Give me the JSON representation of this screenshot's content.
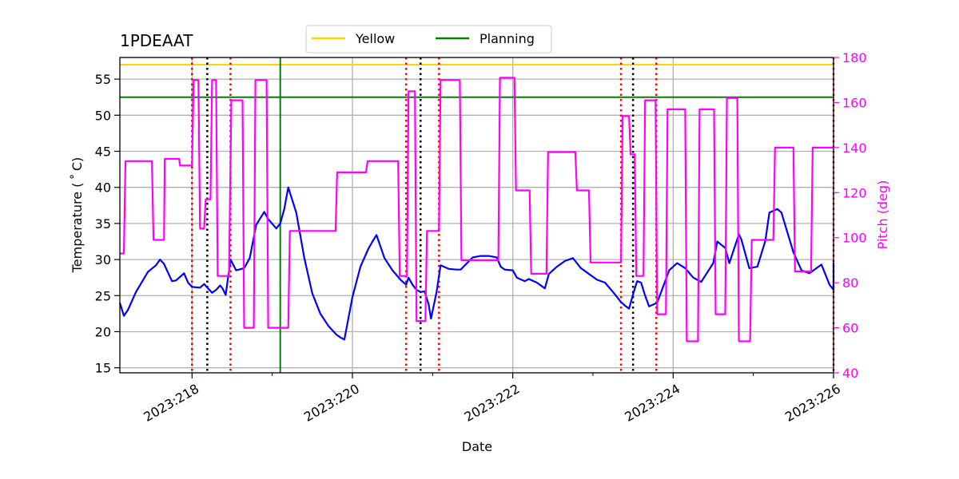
{
  "chart_data": {
    "type": "line",
    "title": "1PDEAAT",
    "xlabel": "Date",
    "ylabel": "Temperature ($^\\circ$C)",
    "ylabel_display": "Temperature ( ˚ C)",
    "y2label": "Pitch (deg)",
    "xlim": [
      217.1,
      226.0
    ],
    "ylim": [
      14.3,
      58.0
    ],
    "y2lim": [
      40,
      180
    ],
    "x_ticks": [
      218,
      220,
      222,
      224,
      226
    ],
    "x_tick_labels": [
      "2023:218",
      "2023:220",
      "2023:222",
      "2023:224",
      "2023:226"
    ],
    "x_minor_ticks": [
      219,
      221,
      223,
      225
    ],
    "y_ticks": [
      15,
      20,
      25,
      30,
      35,
      40,
      45,
      50,
      55
    ],
    "y_tick_labels": [
      "15",
      "20",
      "25",
      "30",
      "35",
      "40",
      "45",
      "50",
      "55"
    ],
    "y2_ticks": [
      40,
      60,
      80,
      100,
      120,
      140,
      160,
      180
    ],
    "y2_tick_labels": [
      "40",
      "60",
      "80",
      "100",
      "120",
      "140",
      "160",
      "180"
    ],
    "grid": true,
    "legend": {
      "placement": "top-center, outside",
      "entries": [
        {
          "label": "Yellow",
          "color": "#ffd700"
        },
        {
          "label": "Planning",
          "color": "#008000"
        }
      ]
    },
    "hlines": [
      {
        "name": "Yellow",
        "y": 57.0,
        "color": "#ffd700"
      },
      {
        "name": "Planning",
        "y": 52.5,
        "color": "#008000"
      }
    ],
    "vlines": {
      "planning": {
        "x": [
          219.1
        ],
        "color": "#008000"
      },
      "red_dotted": {
        "x": [
          218.0,
          218.48,
          220.67,
          221.08,
          223.35,
          223.79,
          226.0
        ],
        "color": "#ff0000"
      },
      "black_dotted": {
        "x": [
          218.19,
          220.85,
          223.5
        ],
        "color": "#000000"
      }
    },
    "series": [
      {
        "axis": "y",
        "color": "#0000ff",
        "x": [
          217.1,
          217.15,
          217.2,
          217.3,
          217.45,
          217.55,
          217.6,
          217.65,
          217.7,
          217.75,
          217.8,
          217.9,
          217.95,
          218.0,
          218.1,
          218.15,
          218.2,
          218.25,
          218.3,
          218.35,
          218.38,
          218.42,
          218.48,
          218.55,
          218.65,
          218.72,
          218.8,
          218.9,
          218.95,
          219.05,
          219.1,
          219.15,
          219.2,
          219.3,
          219.4,
          219.5,
          219.6,
          219.7,
          219.8,
          219.85,
          219.9,
          220.0,
          220.1,
          220.2,
          220.25,
          220.3,
          220.4,
          220.5,
          220.6,
          220.67,
          220.7,
          220.75,
          220.8,
          220.85,
          220.9,
          220.95,
          220.98,
          221.05,
          221.1,
          221.2,
          221.3,
          221.35,
          221.5,
          221.6,
          221.7,
          221.8,
          221.85,
          221.9,
          222.0,
          222.05,
          222.15,
          222.2,
          222.3,
          222.4,
          222.45,
          222.55,
          222.65,
          222.75,
          222.85,
          222.95,
          223.05,
          223.15,
          223.25,
          223.35,
          223.4,
          223.45,
          223.5,
          223.55,
          223.6,
          223.65,
          223.7,
          223.8,
          223.9,
          223.95,
          224.05,
          224.15,
          224.25,
          224.35,
          224.5,
          224.55,
          224.65,
          224.7,
          224.82,
          224.85,
          224.95,
          225.05,
          225.15,
          225.2,
          225.3,
          225.35,
          225.5,
          225.6,
          225.7,
          225.75,
          225.85,
          225.95,
          226.0
        ],
        "values": [
          24.0,
          22.2,
          23.0,
          25.5,
          28.3,
          29.2,
          30.0,
          29.4,
          28.2,
          27.0,
          27.1,
          28.1,
          26.8,
          26.2,
          26.1,
          26.6,
          26.0,
          25.4,
          25.8,
          26.4,
          26.0,
          25.1,
          30.0,
          28.5,
          28.8,
          30.2,
          34.8,
          36.6,
          35.6,
          34.3,
          35.0,
          37.0,
          40.0,
          36.5,
          30.2,
          25.3,
          22.5,
          20.8,
          19.6,
          19.2,
          18.9,
          24.8,
          29.0,
          31.5,
          32.5,
          33.4,
          30.2,
          28.5,
          27.2,
          26.5,
          27.5,
          26.5,
          25.8,
          25.5,
          25.6,
          23.8,
          21.8,
          25.5,
          29.2,
          28.7,
          28.6,
          28.6,
          30.3,
          30.5,
          30.5,
          30.3,
          29.0,
          28.6,
          28.5,
          27.5,
          27.0,
          27.3,
          26.8,
          26.0,
          28.0,
          29.0,
          29.8,
          30.2,
          28.8,
          28.0,
          27.2,
          26.8,
          25.5,
          24.1,
          23.6,
          23.2,
          25.2,
          27.0,
          26.8,
          25.0,
          23.5,
          24.0,
          27.0,
          28.5,
          29.5,
          28.8,
          27.5,
          26.9,
          29.5,
          32.5,
          31.6,
          29.5,
          33.5,
          32.8,
          28.8,
          29.0,
          32.6,
          36.5,
          37.0,
          36.5,
          31.0,
          28.5,
          28.1,
          28.5,
          29.3,
          26.5,
          25.8
        ],
        "values_tail_note": "",
        "x_tail": [
          226.0
        ],
        "values_tail": [
          29.6
        ]
      },
      {
        "axis": "y2",
        "color": "#ff00ff",
        "step": true,
        "x": [
          217.1,
          217.15,
          217.17,
          217.5,
          217.52,
          217.65,
          217.66,
          217.84,
          217.85,
          218.0,
          218.02,
          218.08,
          218.1,
          218.15,
          218.17,
          218.23,
          218.25,
          218.3,
          218.32,
          218.46,
          218.49,
          218.63,
          218.65,
          218.77,
          218.79,
          218.93,
          218.95,
          219.1,
          219.17,
          219.2,
          219.22,
          219.79,
          219.81,
          220.17,
          220.19,
          220.57,
          220.59,
          220.68,
          220.7,
          220.78,
          220.8,
          220.91,
          220.93,
          221.08,
          221.1,
          221.34,
          221.36,
          221.82,
          221.84,
          222.02,
          222.04,
          222.21,
          222.23,
          222.42,
          222.44,
          222.78,
          222.8,
          222.95,
          222.97,
          223.35,
          223.37,
          223.45,
          223.47,
          223.52,
          223.54,
          223.63,
          223.65,
          223.78,
          223.8,
          223.91,
          223.93,
          224.15,
          224.17,
          224.31,
          224.33,
          224.51,
          224.53,
          224.65,
          224.67,
          224.8,
          224.82,
          224.96,
          224.98,
          225.25,
          225.27,
          225.5,
          225.52,
          225.72,
          225.74,
          225.98,
          226.0
        ],
        "values": [
          93,
          93,
          134,
          134,
          99,
          99,
          135,
          135,
          132,
          132,
          170,
          170,
          104,
          104,
          117,
          117,
          170,
          170,
          83,
          83,
          161,
          161,
          60,
          60,
          170,
          170,
          60,
          60,
          60,
          60,
          103,
          103,
          129,
          129,
          134,
          134,
          83,
          83,
          165,
          165,
          63,
          63,
          103,
          103,
          170,
          170,
          90,
          90,
          171,
          171,
          121,
          121,
          84,
          84,
          138,
          138,
          121,
          121,
          89,
          89,
          154,
          154,
          137,
          137,
          83,
          83,
          161,
          161,
          66,
          66,
          157,
          157,
          54,
          54,
          157,
          157,
          66,
          66,
          162,
          162,
          54,
          54,
          99,
          99,
          140,
          140,
          85,
          85,
          140,
          140,
          140
        ]
      }
    ]
  }
}
